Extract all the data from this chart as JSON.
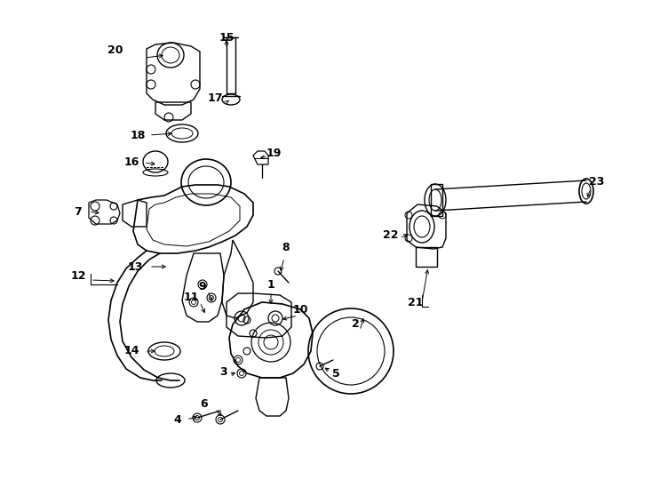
{
  "bg": "#ffffff",
  "fw": 7.34,
  "fh": 5.4,
  "dpi": 100,
  "lc": "black",
  "lw": 0.9
}
